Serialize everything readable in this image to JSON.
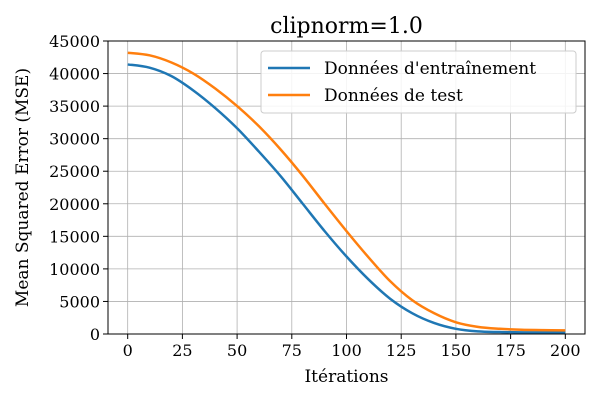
{
  "chart_data": {
    "type": "line",
    "title": "clipnorm=1.0",
    "xlabel": "Itérations",
    "ylabel": "Mean Squared Error (MSE)",
    "xlim": [
      -9,
      209
    ],
    "ylim": [
      0,
      45000
    ],
    "x_ticks": [
      0,
      25,
      50,
      75,
      100,
      125,
      150,
      175,
      200
    ],
    "y_ticks": [
      0,
      5000,
      10000,
      15000,
      20000,
      25000,
      30000,
      35000,
      40000,
      45000
    ],
    "grid": true,
    "legend_position": "top-right",
    "series": [
      {
        "name": "Données d'entraînement",
        "color": "#1f77b4",
        "x": [
          0,
          10,
          20,
          30,
          40,
          50,
          60,
          70,
          80,
          90,
          100,
          110,
          120,
          130,
          140,
          150,
          160,
          170,
          180,
          190,
          200
        ],
        "y": [
          41400,
          40900,
          39600,
          37400,
          34700,
          31600,
          28000,
          24200,
          20000,
          15800,
          11900,
          8400,
          5400,
          3200,
          1700,
          800,
          400,
          300,
          250,
          250,
          250
        ]
      },
      {
        "name": "Données de test",
        "color": "#ff7f0e",
        "x": [
          0,
          10,
          20,
          30,
          40,
          50,
          60,
          70,
          80,
          90,
          100,
          110,
          120,
          130,
          140,
          150,
          160,
          170,
          180,
          190,
          200
        ],
        "y": [
          43200,
          42800,
          41700,
          40000,
          37700,
          35000,
          31900,
          28300,
          24300,
          20000,
          15800,
          11800,
          8100,
          5200,
          3200,
          1800,
          1100,
          800,
          650,
          600,
          550
        ]
      }
    ]
  }
}
